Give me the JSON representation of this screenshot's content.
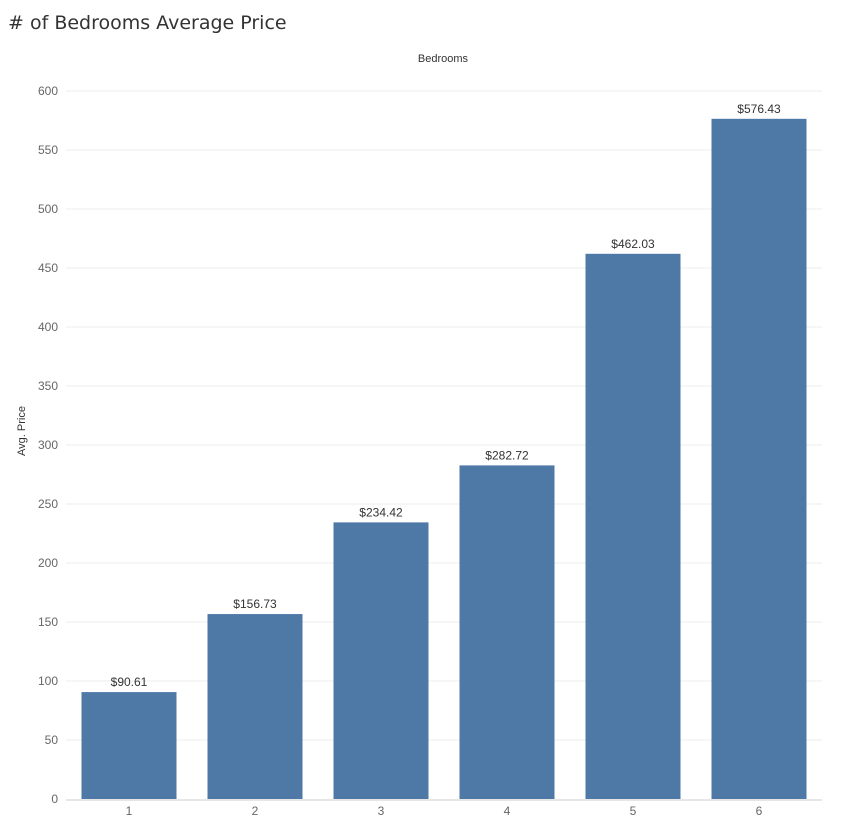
{
  "title": "# of Bedrooms Average Price",
  "chart_data": {
    "type": "bar",
    "title": "# of Bedrooms Average Price",
    "column_header": "Bedrooms",
    "xlabel": "",
    "ylabel": "Avg. Price",
    "categories": [
      "1",
      "2",
      "3",
      "4",
      "5",
      "6"
    ],
    "values": [
      90.61,
      156.73,
      234.42,
      282.72,
      462.03,
      576.43
    ],
    "data_labels": [
      "$90.61",
      "$156.73",
      "$234.42",
      "$282.72",
      "$462.03",
      "$576.43"
    ],
    "yticks": [
      "0",
      "50",
      "100",
      "150",
      "200",
      "250",
      "300",
      "350",
      "400",
      "450",
      "500",
      "550",
      "600"
    ],
    "ylim": [
      0,
      600
    ],
    "grid": true,
    "legend": "none",
    "bar_color": "#4e79a7"
  }
}
